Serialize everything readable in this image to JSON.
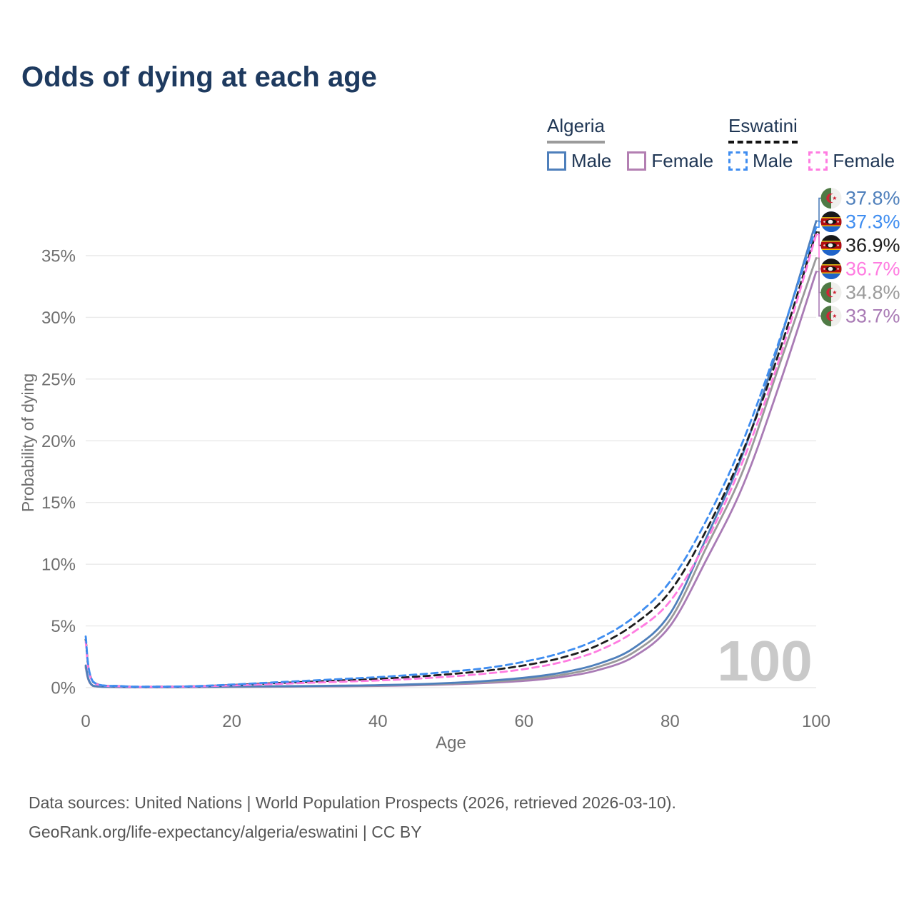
{
  "title": "Odds of dying at each age",
  "legend": {
    "algeria": {
      "label": "Algeria",
      "male_label": "Male",
      "female_label": "Female"
    },
    "eswatini": {
      "label": "Eswatini",
      "male_label": "Male",
      "female_label": "Female"
    }
  },
  "footer": {
    "line1": "Data sources: United Nations | World Population Prospects (2026, retrieved 2026-03-10).",
    "line2": "GeoRank.org/life-expectancy/algeria/eswatini | CC BY"
  },
  "colors": {
    "title": "#1e3a5f",
    "axis_text": "#6f6f6f",
    "gridline": "#e9e9e9",
    "watermark": "#c9c9c9",
    "legend_text": "#1f3654",
    "algeria_underline": "#9b9b9b",
    "eswatini_underline": "#141414"
  },
  "chart_data": {
    "type": "line",
    "title": "Odds of dying at each age",
    "xlabel": "Age",
    "ylabel": "Probability of dying",
    "xlim": [
      0,
      100
    ],
    "ylim": [
      0,
      38.5
    ],
    "grid": "horizontal",
    "legend_position": "top-right",
    "watermark": "100",
    "xticks": [
      {
        "value": 0,
        "label": "0"
      },
      {
        "value": 20,
        "label": "20"
      },
      {
        "value": 40,
        "label": "40"
      },
      {
        "value": 60,
        "label": "60"
      },
      {
        "value": 80,
        "label": "80"
      },
      {
        "value": 100,
        "label": "100"
      }
    ],
    "yticks": [
      {
        "value": 0,
        "label": "0%"
      },
      {
        "value": 5,
        "label": "5%"
      },
      {
        "value": 10,
        "label": "10%"
      },
      {
        "value": 15,
        "label": "15%"
      },
      {
        "value": 20,
        "label": "20%"
      },
      {
        "value": 25,
        "label": "25%"
      },
      {
        "value": 30,
        "label": "30%"
      },
      {
        "value": 35,
        "label": "35%"
      }
    ],
    "ages": [
      0,
      1,
      5,
      10,
      15,
      20,
      25,
      30,
      35,
      40,
      45,
      50,
      55,
      60,
      65,
      70,
      75,
      80,
      85,
      90,
      95,
      100
    ],
    "series": [
      {
        "id": "algeria-female",
        "name": "Algeria Female",
        "country": "Algeria",
        "sex": "Female",
        "color": "#a97bb5",
        "dashed": false,
        "flag": "algeria",
        "end_label": "33.7%",
        "end_value": 33.7,
        "values": [
          1.6,
          0.14,
          0.04,
          0.03,
          0.04,
          0.05,
          0.07,
          0.09,
          0.11,
          0.14,
          0.19,
          0.27,
          0.38,
          0.55,
          0.85,
          1.4,
          2.5,
          5.0,
          10.4,
          16.4,
          24.6,
          33.7
        ]
      },
      {
        "id": "algeria-both",
        "name": "Algeria",
        "country": "Algeria",
        "sex": "Both",
        "color": "#9a9a9a",
        "dashed": false,
        "flag": "algeria",
        "end_label": "34.8%",
        "end_value": 34.8,
        "values": [
          1.7,
          0.15,
          0.045,
          0.035,
          0.05,
          0.07,
          0.09,
          0.11,
          0.14,
          0.17,
          0.23,
          0.33,
          0.46,
          0.68,
          1.02,
          1.65,
          2.85,
          5.5,
          11.4,
          17.6,
          26.2,
          34.8
        ]
      },
      {
        "id": "algeria-male",
        "name": "Algeria Male",
        "country": "Algeria",
        "sex": "Male",
        "color": "#4e7fbb",
        "dashed": false,
        "flag": "algeria",
        "end_label": "37.8%",
        "end_value": 37.8,
        "values": [
          1.8,
          0.16,
          0.05,
          0.04,
          0.06,
          0.09,
          0.11,
          0.13,
          0.16,
          0.2,
          0.27,
          0.38,
          0.55,
          0.8,
          1.2,
          1.9,
          3.2,
          6.0,
          12.2,
          19.0,
          28.0,
          37.8
        ]
      },
      {
        "id": "eswatini-both",
        "name": "Eswatini",
        "country": "Eswatini",
        "sex": "Both",
        "color": "#1c1c1c",
        "dashed": true,
        "flag": "eswatini",
        "end_label": "36.9%",
        "end_value": 36.9,
        "values": [
          3.9,
          0.48,
          0.11,
          0.075,
          0.11,
          0.21,
          0.34,
          0.46,
          0.59,
          0.71,
          0.88,
          1.1,
          1.38,
          1.8,
          2.4,
          3.4,
          5.1,
          7.8,
          12.8,
          19.2,
          27.3,
          36.9
        ]
      },
      {
        "id": "eswatini-female",
        "name": "Eswatini Female",
        "country": "Eswatini",
        "sex": "Female",
        "color": "#ff7ce1",
        "dashed": true,
        "flag": "eswatini",
        "end_label": "36.7%",
        "end_value": 36.7,
        "values": [
          3.7,
          0.45,
          0.1,
          0.07,
          0.1,
          0.18,
          0.28,
          0.38,
          0.48,
          0.58,
          0.72,
          0.9,
          1.15,
          1.5,
          2.05,
          2.95,
          4.5,
          7.0,
          11.9,
          18.4,
          26.7,
          36.7
        ]
      },
      {
        "id": "eswatini-male",
        "name": "Eswatini Male",
        "country": "Eswatini",
        "sex": "Male",
        "color": "#3f8df0",
        "dashed": true,
        "flag": "eswatini",
        "end_label": "37.3%",
        "end_value": 37.3,
        "values": [
          4.15,
          0.5,
          0.12,
          0.08,
          0.12,
          0.25,
          0.4,
          0.55,
          0.7,
          0.85,
          1.05,
          1.3,
          1.6,
          2.1,
          2.8,
          3.9,
          5.7,
          8.6,
          13.6,
          20.0,
          28.2,
          37.3
        ]
      }
    ]
  }
}
